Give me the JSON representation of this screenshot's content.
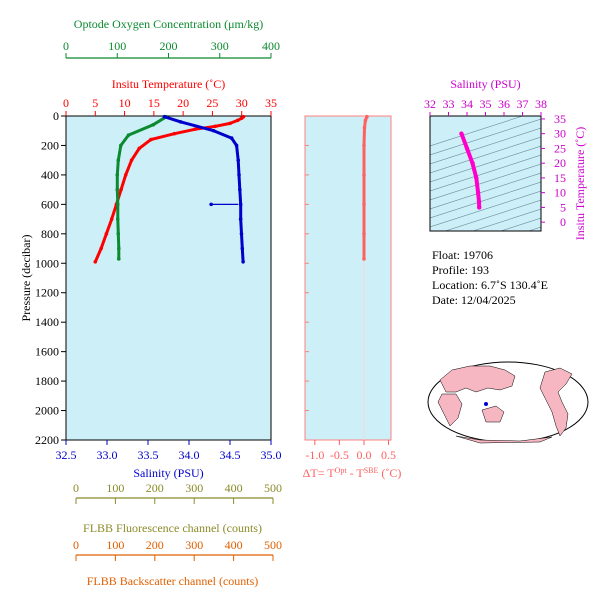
{
  "chart_data": [
    {
      "type": "line",
      "panel": "main-profile",
      "ylabel": "Pressure (decibar)",
      "yticks": [
        0,
        200,
        400,
        600,
        800,
        1000,
        1200,
        1400,
        1600,
        1800,
        2000,
        2200
      ],
      "ylim": [
        2200,
        0
      ],
      "axes": {
        "oxygen": {
          "title": "Optode Oxygen Concentration (μm/kg)",
          "ticks": [
            0,
            100,
            200,
            300,
            400
          ],
          "range": [
            0,
            400
          ],
          "color": "#0b8a2f"
        },
        "temperature": {
          "title": "Insitu Temperature (˚C)",
          "ticks": [
            0,
            5,
            10,
            15,
            20,
            25,
            30,
            35
          ],
          "range": [
            0,
            35
          ],
          "color": "#ff0000"
        },
        "salinity": {
          "title": "Salinity (PSU)",
          "ticks": [
            "32.5",
            "33.0",
            "33.5",
            "34.0",
            "34.5",
            "35.0"
          ],
          "range": [
            32.5,
            35.0
          ],
          "color": "#0000cc"
        },
        "fluorescence": {
          "title": "FLBB Fluorescence channel (counts)",
          "ticks": [
            0,
            100,
            200,
            300,
            400,
            500
          ],
          "range": [
            0,
            500
          ],
          "color": "#8b8b2a"
        },
        "backscatter": {
          "title": "FLBB Backscatter channel (counts)",
          "ticks": [
            0,
            100,
            200,
            300,
            400,
            500
          ],
          "range": [
            0,
            500
          ],
          "color": "#e06000"
        }
      },
      "series": [
        {
          "key": "temperature",
          "color": "#ff0000",
          "points": [
            [
              30.3,
              5
            ],
            [
              30.0,
              15
            ],
            [
              29.3,
              30
            ],
            [
              28.0,
              50
            ],
            [
              25.5,
              70
            ],
            [
              22.0,
              90
            ],
            [
              18.5,
              120
            ],
            [
              14.5,
              160
            ],
            [
              12.5,
              220
            ],
            [
              11.2,
              300
            ],
            [
              10.2,
              400
            ],
            [
              9.4,
              500
            ],
            [
              8.6,
              600
            ],
            [
              7.8,
              700
            ],
            [
              6.9,
              800
            ],
            [
              6.0,
              900
            ],
            [
              5.0,
              990
            ]
          ]
        },
        {
          "key": "oxygen",
          "color": "#0b8a2f",
          "points": [
            [
              196,
              5
            ],
            [
              170,
              60
            ],
            [
              122,
              130
            ],
            [
              107,
              200
            ],
            [
              102,
              300
            ],
            [
              100,
              400
            ],
            [
              100,
              500
            ],
            [
              101,
              600
            ],
            [
              101,
              700
            ],
            [
              102,
              800
            ],
            [
              103,
              900
            ],
            [
              103,
              970
            ]
          ]
        },
        {
          "key": "salinity",
          "color": "#0000cc",
          "points": [
            [
              33.7,
              5
            ],
            [
              33.9,
              40
            ],
            [
              34.3,
              100
            ],
            [
              34.52,
              150
            ],
            [
              34.58,
              200
            ],
            [
              34.6,
              300
            ],
            [
              34.61,
              400
            ],
            [
              34.62,
              500
            ],
            [
              34.63,
              600
            ],
            [
              34.63,
              700
            ],
            [
              34.64,
              800
            ],
            [
              34.65,
              900
            ],
            [
              34.66,
              990
            ]
          ],
          "outlier": [
            [
              34.27,
              600
            ],
            [
              34.6,
              600
            ]
          ]
        }
      ]
    },
    {
      "type": "line",
      "panel": "delta-t",
      "xlabel": "ΔT= T",
      "xlabel_sup1": "Opt",
      "xlabel_mid": " - T",
      "xlabel_sup2": "SBE",
      "xlabel_end": " (˚C)",
      "xticks": [
        "-1.0",
        "-0.5",
        "0.0",
        "0.5"
      ],
      "xlim": [
        -1.2,
        0.55
      ],
      "color": "#ff6060",
      "points": [
        [
          0.06,
          5
        ],
        [
          0.03,
          30
        ],
        [
          0.01,
          80
        ],
        [
          0.0,
          200
        ],
        [
          0.0,
          400
        ],
        [
          0.0,
          600
        ],
        [
          0.0,
          800
        ],
        [
          0.0,
          970
        ]
      ]
    },
    {
      "type": "scatter",
      "panel": "ts-diagram",
      "xlabel": "Salinity (PSU)",
      "ylabel": "Insitu Temperature (˚C)",
      "xticks": [
        "32",
        "33",
        "34",
        "35",
        "36",
        "37",
        "38"
      ],
      "yticks": [
        "0",
        "5",
        "10",
        "15",
        "20",
        "25",
        "30",
        "35"
      ],
      "xlim": [
        32,
        38
      ],
      "ylim": [
        -3,
        36
      ],
      "color": "#ff00cc",
      "points": [
        [
          33.7,
          30
        ],
        [
          34.0,
          25
        ],
        [
          34.3,
          20
        ],
        [
          34.5,
          15
        ],
        [
          34.6,
          10
        ],
        [
          34.65,
          7
        ],
        [
          34.66,
          5
        ]
      ]
    }
  ],
  "info": {
    "float": "Float:  19706",
    "profile": "Profile:  193",
    "location": "Location:  6.7˚S  130.4˚E",
    "date": "Date:  12/04/2025"
  }
}
